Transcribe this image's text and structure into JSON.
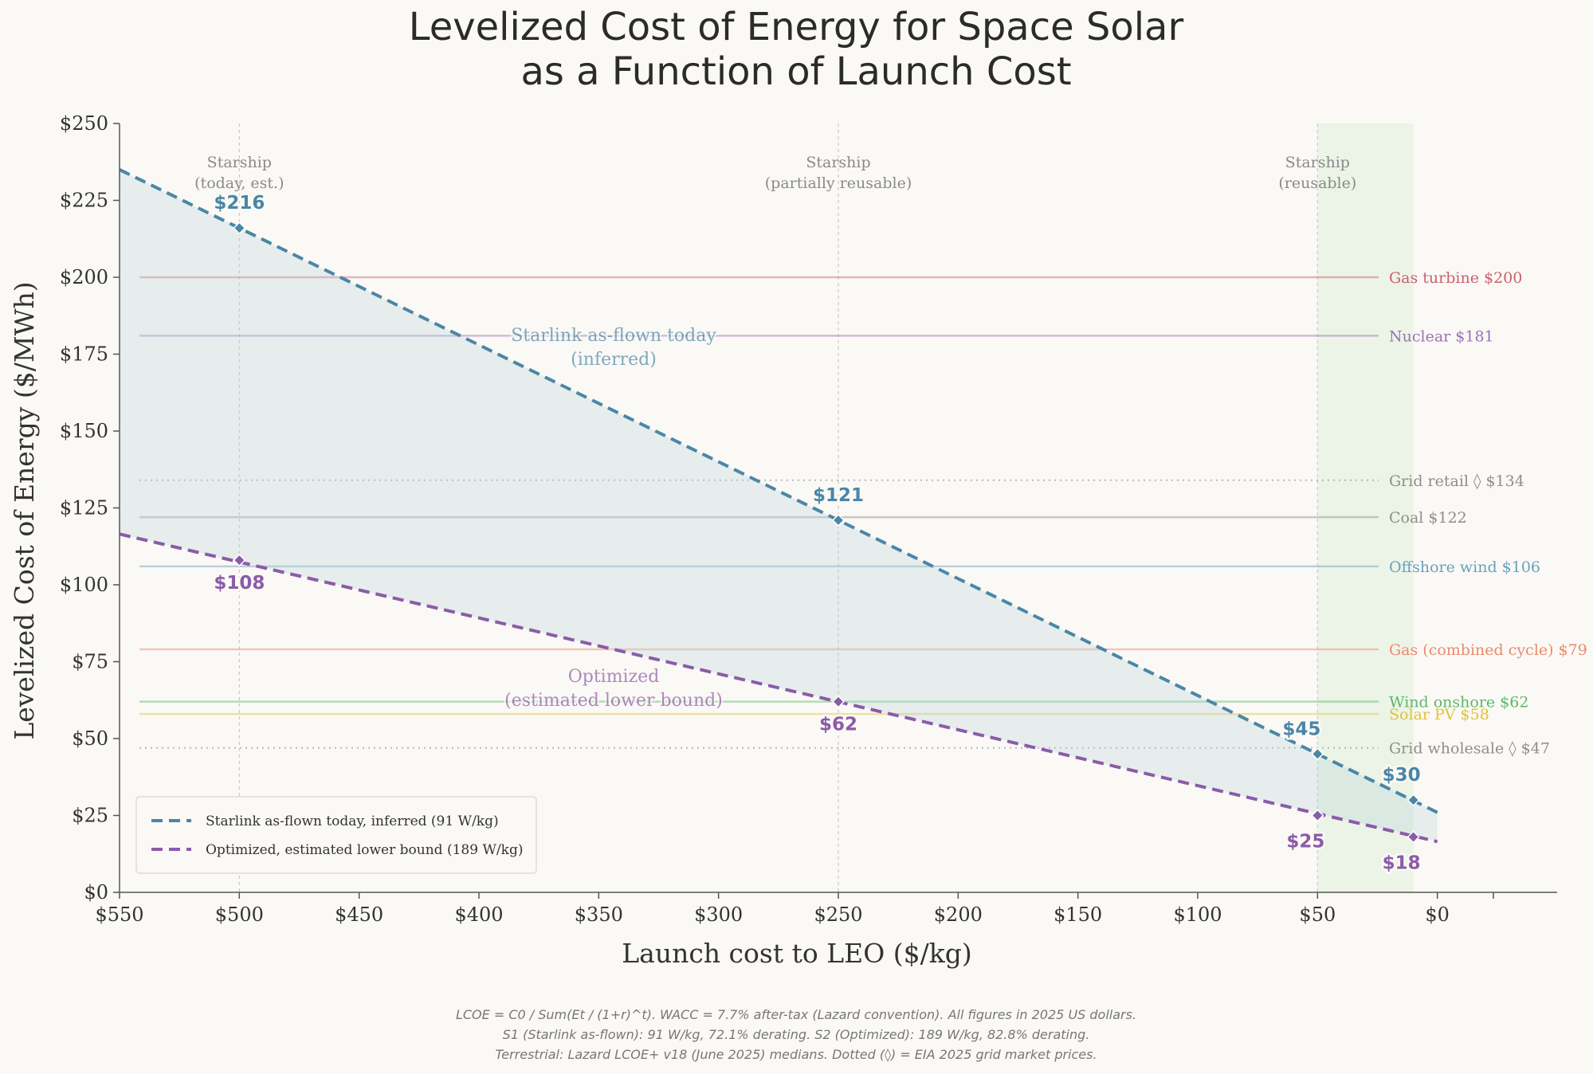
{
  "chart_data": {
    "type": "line",
    "title_lines": [
      "Levelized Cost of Energy for Space Solar",
      "as a Function of Launch Cost"
    ],
    "xlabel": "Launch cost to LEO  ($/kg)",
    "ylabel": "Levelized Cost of Energy  ($/MWh)",
    "xlim": [
      550,
      -50
    ],
    "ylim": [
      0,
      250
    ],
    "x_ticks": [
      550,
      500,
      450,
      400,
      350,
      300,
      250,
      200,
      150,
      100,
      50,
      0
    ],
    "x_tick_labels": [
      "$550",
      "$500",
      "$450",
      "$400",
      "$350",
      "$300",
      "$250",
      "$200",
      "$150",
      "$100",
      "$50",
      "$0"
    ],
    "y_ticks": [
      0,
      25,
      50,
      75,
      100,
      125,
      150,
      175,
      200,
      225,
      250
    ],
    "y_tick_labels": [
      "$0",
      "$25",
      "$50",
      "$75",
      "$100",
      "$125",
      "$150",
      "$175",
      "$200",
      "$225",
      "$250"
    ],
    "grid": false,
    "highlight_band": {
      "x_from": 50,
      "x_to": 10,
      "color": "#e6f2e2"
    },
    "markers": [
      {
        "x": 500,
        "lines": [
          "Starship",
          "(today, est.)"
        ]
      },
      {
        "x": 250,
        "lines": [
          "Starship",
          "(partially reusable)"
        ]
      },
      {
        "x": 50,
        "lines": [
          "Starship",
          "(reusable)"
        ]
      }
    ],
    "series": [
      {
        "name": "Starlink as-flown today, inferred (91 W/kg)",
        "color": "#4a86a8",
        "line_start": [
          550,
          235
        ],
        "line_end": [
          0,
          26
        ],
        "points": [
          {
            "x": 500,
            "y": 216,
            "label": "$216"
          },
          {
            "x": 250,
            "y": 121,
            "label": "$121"
          },
          {
            "x": 50,
            "y": 45,
            "label": "$45"
          },
          {
            "x": 10,
            "y": 30,
            "label": "$30"
          }
        ],
        "annotation_lines": [
          "Starlink as-flown today",
          "(inferred)"
        ]
      },
      {
        "name": "Optimized, estimated lower bound (189 W/kg)",
        "color": "#8b5ba8",
        "line_start": [
          550,
          116.5
        ],
        "line_end": [
          0,
          16.5
        ],
        "points": [
          {
            "x": 500,
            "y": 108,
            "label": "$108"
          },
          {
            "x": 250,
            "y": 62,
            "label": "$62"
          },
          {
            "x": 50,
            "y": 25,
            "label": "$25"
          },
          {
            "x": 10,
            "y": 18,
            "label": "$18"
          }
        ],
        "annotation_lines": [
          "Optimized",
          "(estimated lower bound)"
        ]
      }
    ],
    "reference_lines": [
      {
        "label": "Gas turbine  $200",
        "y": 200,
        "color": "#c9606e",
        "dotted": false
      },
      {
        "label": "Nuclear  $181",
        "y": 181,
        "color": "#9a72b8",
        "dotted": false
      },
      {
        "label": "Grid retail ◊  $134",
        "y": 134,
        "color": "#8e8e8e",
        "dotted": true
      },
      {
        "label": "Coal  $122",
        "y": 122,
        "color": "#8e8e8e",
        "dotted": false
      },
      {
        "label": "Offshore wind  $106",
        "y": 106,
        "color": "#6aa0c0",
        "dotted": false
      },
      {
        "label": "Gas (combined cycle)  $79",
        "y": 79,
        "color": "#ea8a6c",
        "dotted": false
      },
      {
        "label": "Wind onshore  $62",
        "y": 62,
        "color": "#5cb86a",
        "dotted": false
      },
      {
        "label": "Solar PV  $58",
        "y": 58,
        "color": "#e0c23a",
        "dotted": false
      },
      {
        "label": "Grid wholesale ◊  $47",
        "y": 47,
        "color": "#8e8e8e",
        "dotted": true
      }
    ],
    "legend_placement": "lower-left",
    "footnotes": [
      "LCOE = C0 / Sum(Et / (1+r)^t).  WACC = 7.7% after-tax (Lazard convention).  All figures in 2025 US dollars.",
      "S1 (Starlink as-flown): 91 W/kg, 72.1% derating.  S2 (Optimized): 189 W/kg, 82.8% derating.",
      "Terrestrial: Lazard LCOE+ v18 (June 2025) medians.  Dotted (◊) = EIA 2025 grid market prices."
    ]
  }
}
